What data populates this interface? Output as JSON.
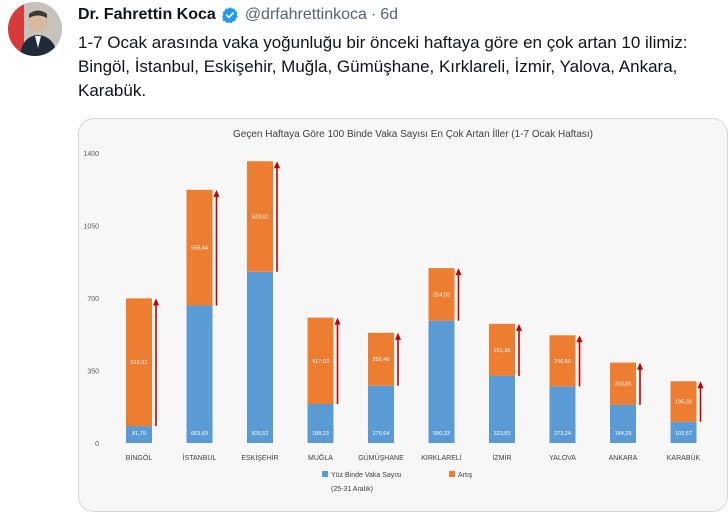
{
  "tweet": {
    "author_name": "Dr. Fahrettin Koca",
    "handle": "@drfahrettinkoca",
    "separator": "·",
    "time": "6d",
    "text": "1-7 Ocak arasında vaka yoğunluğu bir önceki haftaya göre en çok artan 10 ilimiz: Bingöl, İstanbul, Eskişehir, Muğla, Gümüşhane, Kırklareli, İzmir, Yalova, Ankara, Karabük."
  },
  "icons": {
    "verified": "verified-badge-icon",
    "avatar": "profile-avatar"
  },
  "colors": {
    "base": "#5b9bd5",
    "increase": "#ed7d31",
    "arrow": "#c00000",
    "verified": "#1d9bf0"
  },
  "chart_data": {
    "type": "bar",
    "stacked": true,
    "title": "Geçen Haftaya Göre 100 Binde Vaka Sayısı En Çok Artan İller (1-7 Ocak Haftası)",
    "categories": [
      "BİNGÖL",
      "İSTANBUL",
      "ESKİŞEHİR",
      "MUĞLA",
      "GÜMÜŞHANE",
      "KIRKLARELİ",
      "İZMİR",
      "YALOVA",
      "ANKARA",
      "KARABÜK"
    ],
    "series": [
      {
        "name": "Yüz Binde Vaka Sayısı",
        "name_sub": "(25-31 Aralık)",
        "values": [
          81.79,
          663.69,
          826.52,
          188.23,
          276.64,
          590.33,
          323.83,
          273.24,
          184.29,
          102.57
        ],
        "labels": [
          "81,79",
          "663,69",
          "826,52",
          "188,23",
          "276,64",
          "590,33",
          "323,83",
          "273,24",
          "184,29",
          "102,57"
        ]
      },
      {
        "name": "Artış",
        "values": [
          616.31,
          558.44,
          533.62,
          417.03,
          255.46,
          254.03,
          251.36,
          246.69,
          203.86,
          195.33
        ],
        "labels": [
          "616,31",
          "558,44",
          "533,62",
          "417,03",
          "255,46",
          "254,03",
          "251,36",
          "246,69",
          "203,86",
          "195,33"
        ]
      }
    ],
    "yticks": [
      "0",
      "350",
      "700",
      "1050",
      "1400"
    ],
    "ylim": [
      0,
      1400
    ],
    "grid": false,
    "legend": "bottom"
  }
}
